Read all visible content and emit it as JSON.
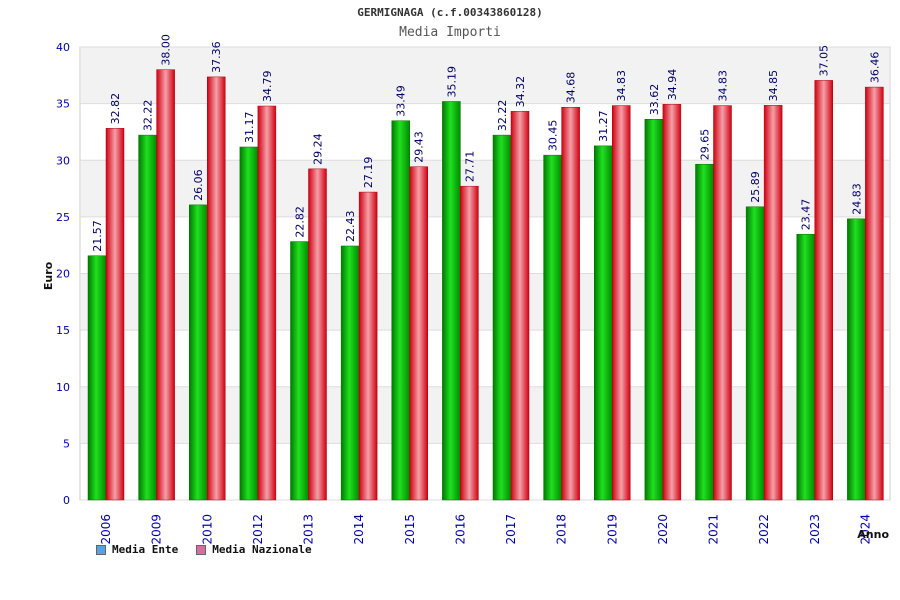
{
  "chart_data": {
    "type": "bar",
    "title": "GERMIGNAGA (c.f.00343860128)",
    "subtitle": "Media Importi",
    "xlabel": "Anno",
    "ylabel": "Euro",
    "ylim": [
      0,
      40
    ],
    "yticks": [
      0,
      5,
      10,
      15,
      20,
      25,
      30,
      35,
      40
    ],
    "grid": true,
    "legend_position": "bottom-left",
    "categories": [
      "2006",
      "2009",
      "2010",
      "2012",
      "2013",
      "2014",
      "2015",
      "2016",
      "2017",
      "2018",
      "2019",
      "2020",
      "2021",
      "2022",
      "2023",
      "2024"
    ],
    "series": [
      {
        "name": "Media Ente",
        "color": "#00b000",
        "values": [
          21.57,
          32.22,
          26.06,
          31.17,
          22.82,
          22.43,
          33.49,
          35.19,
          32.22,
          30.45,
          31.27,
          33.62,
          29.65,
          25.89,
          23.47,
          24.83
        ],
        "labels": [
          "21.57",
          "32.22",
          "26.06",
          "31.17",
          "22.82",
          "22.43",
          "33.49",
          "35.19",
          "32.22",
          "30.45",
          "31.27",
          "33.62",
          "29.65",
          "25.89",
          "23.47",
          "24.83"
        ]
      },
      {
        "name": "Media Nazionale",
        "color": "#e01020",
        "values": [
          32.82,
          38.0,
          37.36,
          34.79,
          29.24,
          27.19,
          29.43,
          27.71,
          34.32,
          34.68,
          34.83,
          34.94,
          34.83,
          34.85,
          37.05,
          36.46
        ],
        "labels": [
          "32.82",
          "38.00",
          "37.36",
          "34.79",
          "29.24",
          "27.19",
          "29.43",
          "27.71",
          "34.32",
          "34.68",
          "34.83",
          "34.94",
          "34.83",
          "34.85",
          "37.05",
          "36.46"
        ]
      }
    ],
    "legend_swatch_colors": [
      "#5aa0e6",
      "#e06aa0"
    ]
  }
}
